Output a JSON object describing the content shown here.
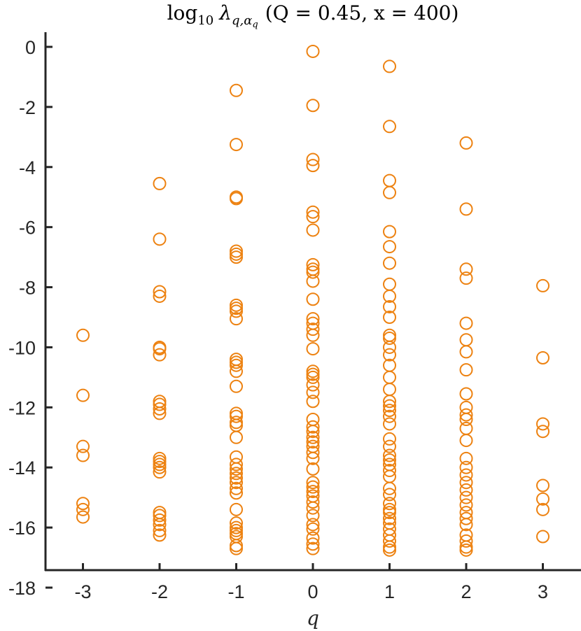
{
  "chart_data": {
    "type": "scatter",
    "title": "log₁₀ λ_{q,α_q} (Q = 0.45, x = 400)",
    "title_parts": {
      "fn": "log",
      "fn_sub": "10",
      "sym": "λ",
      "sym_sub": "q,α",
      "sym_subsub": "q",
      "params": "(Q = 0.45, x = 400)"
    },
    "xlabel": "q",
    "ylabel": "",
    "xlim": [
      -3.65,
      3.5
    ],
    "ylim": [
      -18,
      0.5
    ],
    "xticks": [
      -3,
      -2,
      -1,
      0,
      1,
      2,
      3
    ],
    "xtick_labels": [
      "-3",
      "-2",
      "-1",
      "0",
      "1",
      "2",
      "3"
    ],
    "yticks": [
      0,
      -2,
      -4,
      -6,
      -8,
      -10,
      -12,
      -14,
      -16,
      -18
    ],
    "ytick_labels": [
      "0",
      "-2",
      "-4",
      "-6",
      "-8",
      "-10",
      "-12",
      "-14",
      "-16",
      "-18"
    ],
    "grid": false,
    "legend": "none",
    "marker": "open-circle",
    "color": "#ED8211",
    "points": [
      {
        "q": -3,
        "y": [
          -9.6,
          -11.6,
          -13.3,
          -13.6,
          -15.2,
          -15.4,
          -15.65
        ]
      },
      {
        "q": -2,
        "y": [
          -4.55,
          -6.4,
          -8.15,
          -8.3,
          -10.0,
          -10.05,
          -10.25,
          -11.8,
          -11.9,
          -12.05,
          -12.2,
          -13.7,
          -13.8,
          -13.9,
          -14.0,
          -14.15,
          -15.5,
          -15.6,
          -15.75,
          -15.9,
          -16.1,
          -16.25
        ]
      },
      {
        "q": -1,
        "y": [
          -1.45,
          -3.25,
          -5.0,
          -5.05,
          -6.8,
          -6.9,
          -7.0,
          -8.6,
          -8.7,
          -8.8,
          -9.05,
          -10.4,
          -10.5,
          -10.6,
          -10.8,
          -11.3,
          -12.2,
          -12.3,
          -12.5,
          -12.6,
          -13.0,
          -13.65,
          -13.9,
          -14.05,
          -14.2,
          -14.35,
          -14.5,
          -14.7,
          -14.85,
          -15.4,
          -15.85,
          -16.0,
          -16.1,
          -16.2,
          -16.3,
          -16.6,
          -16.7
        ]
      },
      {
        "q": 0,
        "y": [
          -0.15,
          -1.95,
          -3.75,
          -3.95,
          -5.5,
          -5.65,
          -6.1,
          -7.25,
          -7.4,
          -7.5,
          -7.8,
          -8.4,
          -9.05,
          -9.2,
          -9.4,
          -9.6,
          -10.05,
          -10.8,
          -10.9,
          -11.0,
          -11.25,
          -11.5,
          -11.8,
          -12.4,
          -12.65,
          -12.8,
          -13.0,
          -13.15,
          -13.3,
          -13.5,
          -13.7,
          -14.05,
          -14.5,
          -14.65,
          -14.8,
          -14.95,
          -15.15,
          -15.35,
          -15.6,
          -15.9,
          -16.05,
          -16.35,
          -16.55,
          -16.7
        ]
      },
      {
        "q": 1,
        "y": [
          -0.65,
          -2.65,
          -4.45,
          -4.85,
          -6.15,
          -6.65,
          -7.2,
          -7.9,
          -8.3,
          -8.65,
          -9.0,
          -9.6,
          -9.7,
          -10.0,
          -10.25,
          -10.6,
          -11.0,
          -11.4,
          -11.8,
          -11.95,
          -12.1,
          -12.3,
          -12.55,
          -13.05,
          -13.3,
          -13.6,
          -13.75,
          -13.9,
          -14.1,
          -14.3,
          -14.7,
          -14.9,
          -15.2,
          -15.4,
          -15.5,
          -15.7,
          -15.85,
          -16.05,
          -16.25,
          -16.45,
          -16.65,
          -16.75
        ]
      },
      {
        "q": 2,
        "y": [
          -3.2,
          -5.4,
          -7.4,
          -7.7,
          -9.2,
          -9.75,
          -10.15,
          -10.75,
          -11.55,
          -12.0,
          -12.25,
          -12.4,
          -12.7,
          -13.1,
          -13.7,
          -14.0,
          -14.25,
          -14.5,
          -14.75,
          -15.0,
          -15.25,
          -15.5,
          -15.7,
          -15.9,
          -16.25,
          -16.45,
          -16.65,
          -16.75
        ]
      },
      {
        "q": 3,
        "y": [
          -7.95,
          -10.35,
          -12.55,
          -12.8,
          -14.6,
          -15.05,
          -15.4,
          -16.3
        ]
      }
    ]
  }
}
